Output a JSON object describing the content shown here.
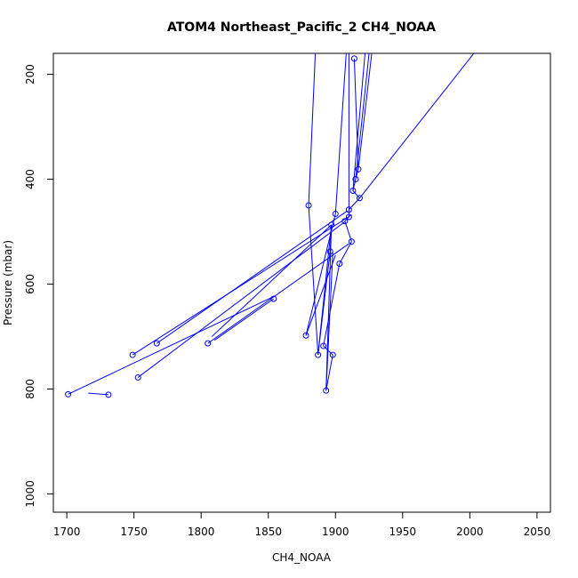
{
  "chart_data": {
    "type": "line",
    "title": "ATOM4 Northeast_Pacific_2 CH4_NOAA",
    "xlabel": "CH4_NOAA",
    "ylabel": "Pressure (mbar)",
    "xlim": [
      1690,
      2060
    ],
    "ylim": [
      1035,
      160
    ],
    "y_reversed": true,
    "x_ticks": [
      1700,
      1750,
      1800,
      1850,
      1900,
      1950,
      2000,
      2050
    ],
    "y_ticks": [
      200,
      400,
      600,
      800,
      1000
    ],
    "color": "#0000ff",
    "grid": false,
    "legend": "none",
    "points": [
      {
        "x": 1914,
        "y": 170
      },
      {
        "x": 1917,
        "y": 381
      },
      {
        "x": 1915,
        "y": 400
      },
      {
        "x": 1913,
        "y": 422
      },
      {
        "x": 1918,
        "y": 436
      },
      {
        "x": 1880,
        "y": 450
      },
      {
        "x": 1910,
        "y": 458
      },
      {
        "x": 1900,
        "y": 466
      },
      {
        "x": 1910,
        "y": 472
      },
      {
        "x": 1907,
        "y": 480
      },
      {
        "x": 1897,
        "y": 487
      },
      {
        "x": 1912,
        "y": 519
      },
      {
        "x": 1896,
        "y": 538
      },
      {
        "x": 1903,
        "y": 561
      },
      {
        "x": 1854,
        "y": 628
      },
      {
        "x": 1878,
        "y": 698
      },
      {
        "x": 1767,
        "y": 713
      },
      {
        "x": 1805,
        "y": 713
      },
      {
        "x": 1891,
        "y": 718
      },
      {
        "x": 1749,
        "y": 735
      },
      {
        "x": 1887,
        "y": 735
      },
      {
        "x": 1898,
        "y": 735
      },
      {
        "x": 1753,
        "y": 778
      },
      {
        "x": 1893,
        "y": 803
      },
      {
        "x": 1701,
        "y": 810
      },
      {
        "x": 1731,
        "y": 811
      }
    ],
    "segments": [
      [
        [
          1914,
          170
        ],
        [
          1917,
          381
        ]
      ],
      [
        [
          1917,
          381
        ],
        [
          1915,
          400
        ]
      ],
      [
        [
          1915,
          400
        ],
        [
          1913,
          422
        ]
      ],
      [
        [
          1913,
          422
        ],
        [
          1918,
          436
        ]
      ],
      [
        [
          1918,
          436
        ],
        [
          1910,
          458
        ]
      ],
      [
        [
          1910,
          458
        ],
        [
          1910,
          472
        ]
      ],
      [
        [
          1910,
          472
        ],
        [
          1907,
          480
        ]
      ],
      [
        [
          1907,
          480
        ],
        [
          1912,
          519
        ]
      ],
      [
        [
          1912,
          519
        ],
        [
          1903,
          561
        ]
      ],
      [
        [
          1903,
          561
        ],
        [
          1891,
          718
        ]
      ],
      [
        [
          1891,
          718
        ],
        [
          1898,
          735
        ]
      ],
      [
        [
          1898,
          735
        ],
        [
          1893,
          803
        ]
      ],
      [
        [
          1893,
          803
        ],
        [
          1897,
          487
        ]
      ],
      [
        [
          1897,
          487
        ],
        [
          1896,
          538
        ]
      ],
      [
        [
          1896,
          538
        ],
        [
          1887,
          735
        ]
      ],
      [
        [
          1887,
          735
        ],
        [
          1880,
          450
        ]
      ],
      [
        [
          1880,
          450
        ],
        [
          1885,
          160
        ]
      ],
      [
        [
          1910,
          458
        ],
        [
          1910,
          160
        ]
      ],
      [
        [
          1913,
          422
        ],
        [
          1922,
          160
        ]
      ],
      [
        [
          1915,
          400
        ],
        [
          1925,
          160
        ]
      ],
      [
        [
          1917,
          381
        ],
        [
          1927,
          160
        ]
      ],
      [
        [
          1918,
          436
        ],
        [
          2003,
          160
        ]
      ],
      [
        [
          1878,
          698
        ],
        [
          1900,
          466
        ]
      ],
      [
        [
          1900,
          466
        ],
        [
          1908,
          160
        ]
      ],
      [
        [
          1878,
          698
        ],
        [
          1900,
          545
        ]
      ],
      [
        [
          1887,
          735
        ],
        [
          1897,
          487
        ]
      ],
      [
        [
          1893,
          803
        ],
        [
          1898,
          540
        ]
      ],
      [
        [
          1767,
          713
        ],
        [
          1909,
          460
        ]
      ],
      [
        [
          1749,
          735
        ],
        [
          1912,
          468
        ]
      ],
      [
        [
          1701,
          810
        ],
        [
          1853,
          625
        ]
      ],
      [
        [
          1731,
          811
        ],
        [
          1716,
          808
        ]
      ],
      [
        [
          1753,
          778
        ],
        [
          1907,
          481
        ]
      ],
      [
        [
          1805,
          713
        ],
        [
          1910,
          523
        ]
      ],
      [
        [
          1897,
          487
        ],
        [
          1808,
          700
        ]
      ],
      [
        [
          1854,
          628
        ],
        [
          1810,
          707
        ]
      ]
    ]
  }
}
